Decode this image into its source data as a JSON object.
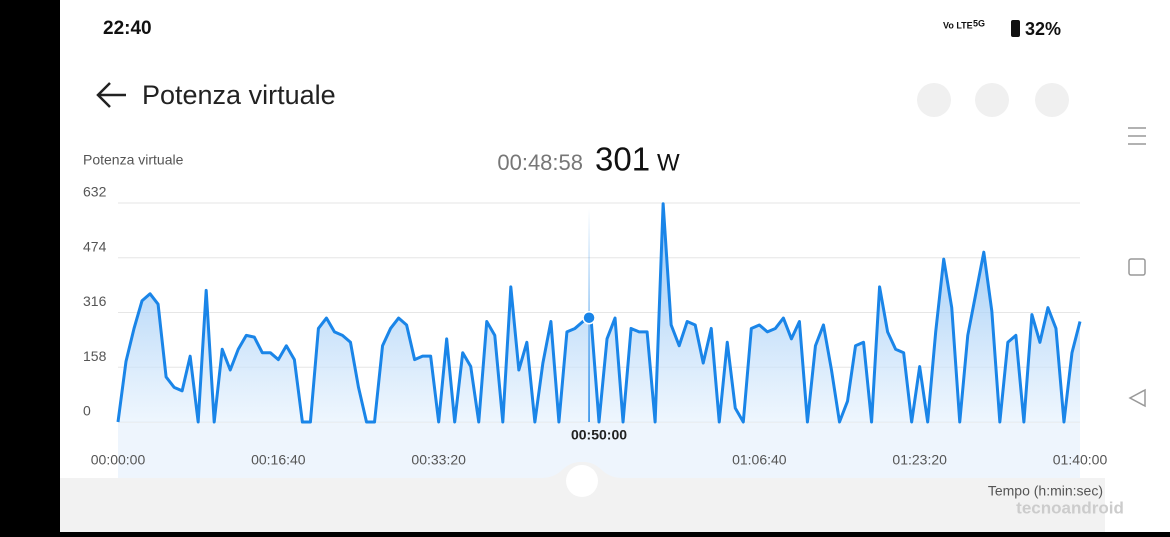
{
  "status_bar": {
    "time": "22:40",
    "volte": "Vo LTE",
    "network": "5G",
    "battery": "32%"
  },
  "header": {
    "title": "Potenza virtuale"
  },
  "watermark": "tecnoandroid",
  "chart_data": {
    "type": "area",
    "ylabel": "Potenza virtuale",
    "xlabel": "Tempo (h:min:sec)",
    "selected": {
      "time": "00:48:58",
      "x": 2938,
      "value": 301,
      "unit": "W"
    },
    "x": [
      0,
      50,
      100,
      150,
      200,
      250,
      300,
      350,
      400,
      450,
      500,
      550,
      600,
      650,
      700,
      750,
      800,
      850,
      900,
      950,
      1000,
      1050,
      1100,
      1150,
      1200,
      1250,
      1300,
      1350,
      1400,
      1450,
      1500,
      1550,
      1600,
      1650,
      1700,
      1750,
      1800,
      1850,
      1900,
      1950,
      2000,
      2050,
      2100,
      2150,
      2200,
      2250,
      2300,
      2350,
      2400,
      2450,
      2500,
      2550,
      2600,
      2650,
      2700,
      2750,
      2800,
      2850,
      2900,
      2950,
      3000,
      3050,
      3100,
      3150,
      3200,
      3250,
      3300,
      3350,
      3400,
      3450,
      3500,
      3550,
      3600,
      3650,
      3700,
      3750,
      3800,
      3850,
      3900,
      3950,
      4000,
      4050,
      4100,
      4150,
      4200,
      4250,
      4300,
      4350,
      4400,
      4450,
      4500,
      4550,
      4600,
      4650,
      4700,
      4750,
      4800,
      4850,
      4900,
      4950,
      5000,
      5050,
      5100,
      5150,
      5200,
      5250,
      5300,
      5350,
      5400,
      5450,
      5500,
      5550,
      5600,
      5650,
      5700,
      5750,
      5800,
      5850,
      5900,
      5950,
      6000
    ],
    "series": [
      {
        "name": "Potenza virtuale",
        "color": "#1a85e8",
        "values": [
          0,
          175,
          270,
          350,
          370,
          340,
          130,
          100,
          90,
          190,
          0,
          380,
          0,
          210,
          150,
          210,
          250,
          245,
          200,
          200,
          180,
          220,
          180,
          0,
          0,
          270,
          300,
          260,
          250,
          230,
          100,
          0,
          0,
          220,
          270,
          300,
          280,
          180,
          190,
          190,
          0,
          240,
          0,
          200,
          160,
          0,
          290,
          250,
          0,
          390,
          150,
          230,
          0,
          170,
          290,
          0,
          260,
          270,
          290,
          301,
          0,
          240,
          300,
          0,
          270,
          260,
          260,
          0,
          630,
          280,
          220,
          290,
          280,
          170,
          270,
          0,
          230,
          40,
          0,
          270,
          280,
          260,
          270,
          300,
          240,
          290,
          0,
          220,
          280,
          150,
          0,
          60,
          220,
          230,
          0,
          390,
          260,
          210,
          200,
          0,
          160,
          0,
          260,
          470,
          330,
          0,
          250,
          370,
          490,
          320,
          0,
          230,
          250,
          0,
          310,
          230,
          330,
          270,
          0,
          200,
          290
        ]
      }
    ],
    "xlim": [
      0,
      6000
    ],
    "xticks": [
      {
        "value": 0,
        "label": "00:00:00"
      },
      {
        "value": 1000,
        "label": "00:16:40"
      },
      {
        "value": 2000,
        "label": "00:33:20"
      },
      {
        "value": 3000,
        "label": "00:50:00"
      },
      {
        "value": 4000,
        "label": "01:06:40"
      },
      {
        "value": 5000,
        "label": "01:23:20"
      },
      {
        "value": 6000,
        "label": "01:40:00"
      }
    ],
    "ylim": [
      0,
      632
    ],
    "yticks": [
      0,
      158,
      316,
      474,
      632
    ],
    "grid": true
  }
}
